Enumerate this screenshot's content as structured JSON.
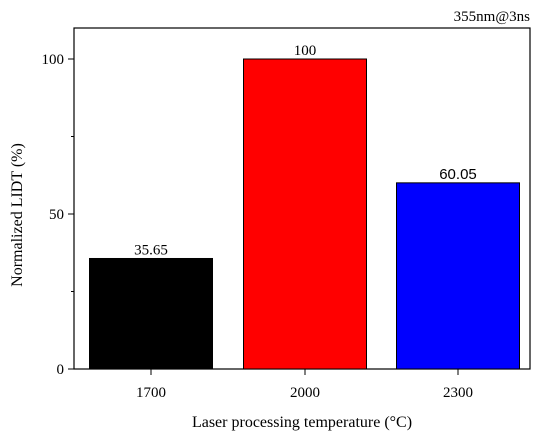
{
  "chart_data": {
    "type": "bar",
    "title": "",
    "annotation": "355nm@3ns",
    "categories": [
      "1700",
      "2000",
      "2300"
    ],
    "values": [
      35.65,
      100,
      60.05
    ],
    "data_labels": [
      "35.65",
      "100",
      "60.05"
    ],
    "colors": [
      "#000000",
      "#ff0000",
      "#0000ff"
    ],
    "xlabel": "Laser processing temperature (°C)",
    "ylabel": "Normalized LIDT (%)",
    "ylim": [
      0,
      110
    ],
    "yticks": [
      0,
      50,
      100
    ],
    "ytick_labels": [
      "0",
      "50",
      "100"
    ],
    "grid": false,
    "legend": "none"
  }
}
